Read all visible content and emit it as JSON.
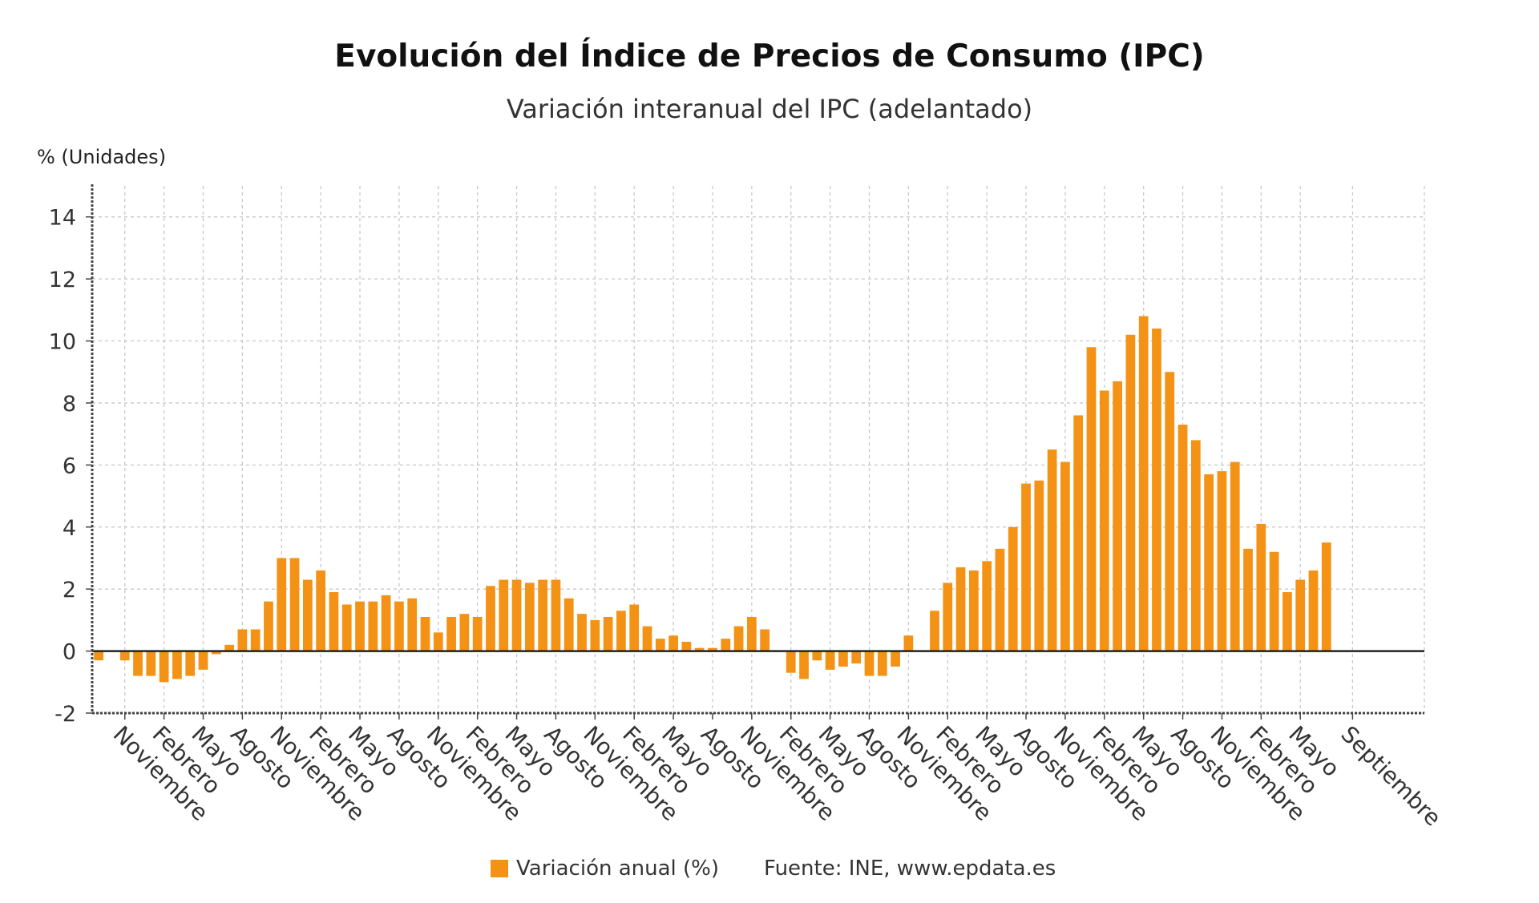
{
  "chart_data": {
    "type": "bar",
    "title": "Evolución del Índice de Precios de Consumo (IPC)",
    "subtitle": "Variación interanual del IPC (adelantado)",
    "ylabel": "% (Unidades)",
    "ylim": [
      -2,
      15
    ],
    "yticks": [
      -2,
      0,
      2,
      4,
      6,
      8,
      10,
      12,
      14
    ],
    "grid": true,
    "x_tick_labels": [
      "Noviembre",
      "Febrero",
      "Mayo",
      "Agosto",
      "Noviembre",
      "Febrero",
      "Mayo",
      "Agosto",
      "Noviembre",
      "Febrero",
      "Mayo",
      "Agosto",
      "Noviembre",
      "Febrero",
      "Mayo",
      "Agosto",
      "Noviembre",
      "Febrero",
      "Mayo",
      "Agosto",
      "Noviembre",
      "Febrero",
      "Mayo",
      "Agosto",
      "Noviembre",
      "Febrero",
      "Mayo",
      "Agosto",
      "Noviembre",
      "Febrero",
      "Mayo",
      "Septiembre"
    ],
    "x_tick_months": [
      2,
      5,
      8,
      11,
      14,
      17,
      20,
      23,
      26,
      29,
      32,
      35,
      38,
      41,
      44,
      47,
      50,
      53,
      56,
      59,
      62,
      65,
      68,
      71,
      74,
      77,
      80,
      83,
      86,
      89,
      92,
      96
    ],
    "total_months": 102,
    "series": [
      {
        "name": "Variación anual (%)",
        "color": "#f39214",
        "values": [
          -0.3,
          0.0,
          -0.3,
          -0.8,
          -0.8,
          -1.0,
          -0.9,
          -0.8,
          -0.6,
          -0.1,
          0.2,
          0.7,
          0.7,
          1.6,
          3.0,
          3.0,
          2.3,
          2.6,
          1.9,
          1.5,
          1.6,
          1.6,
          1.8,
          1.6,
          1.7,
          1.1,
          0.6,
          1.1,
          1.2,
          1.1,
          2.1,
          2.3,
          2.3,
          2.2,
          2.3,
          2.3,
          1.7,
          1.2,
          1.0,
          1.1,
          1.3,
          1.5,
          0.8,
          0.4,
          0.5,
          0.3,
          0.1,
          0.1,
          0.4,
          0.8,
          1.1,
          0.7,
          0.0,
          -0.7,
          -0.9,
          -0.3,
          -0.6,
          -0.5,
          -0.4,
          -0.8,
          -0.8,
          -0.5,
          0.5,
          0.0,
          1.3,
          2.2,
          2.7,
          2.6,
          2.9,
          3.3,
          4.0,
          5.4,
          5.5,
          6.5,
          6.1,
          7.6,
          9.8,
          8.4,
          8.7,
          10.2,
          10.8,
          10.4,
          9.0,
          7.3,
          6.8,
          5.7,
          5.8,
          6.1,
          3.3,
          4.1,
          3.2,
          1.9,
          2.3,
          2.6,
          3.5
        ]
      }
    ],
    "legend": "bottom",
    "source": "Fuente: INE, www.epdata.es"
  }
}
